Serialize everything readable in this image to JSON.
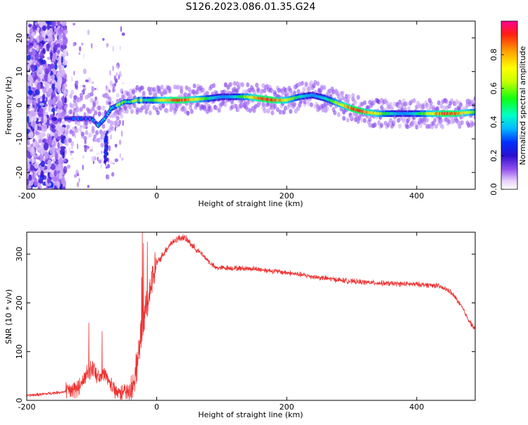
{
  "page": {
    "title": "S126.2023.086.01.35.G24"
  },
  "chart_data": [
    {
      "type": "heatmap",
      "title": "S126.2023.086.01.35.G24",
      "xlabel": "Height of straight line (km)",
      "ylabel": "Frequency (Hz)",
      "xlim": [
        -200,
        490
      ],
      "ylim": [
        -25,
        25
      ],
      "x_ticks": [
        -200,
        0,
        200,
        400
      ],
      "y_ticks": [
        -20,
        -10,
        0,
        10,
        20
      ],
      "colorbar": {
        "label": "Normalized spectral amplitude",
        "range": [
          0,
          1
        ],
        "ticks": [
          0.0,
          0.2,
          0.4,
          0.6,
          0.8
        ],
        "colors": [
          "#ffffff",
          "#d8b8f8",
          "#8040e8",
          "#3010c0",
          "#0000ff",
          "#00c0ff",
          "#00ffc0",
          "#00ff00",
          "#c0ff00",
          "#ffff00",
          "#ffa000",
          "#ff2000",
          "#ff0080"
        ]
      },
      "ridge": {
        "x": [
          -100,
          -90,
          -80,
          -70,
          -60,
          -50,
          -40,
          -30,
          -20,
          0,
          40,
          80,
          100,
          140,
          180,
          200,
          220,
          240,
          260,
          280,
          300,
          320,
          340,
          380,
          420,
          460,
          490
        ],
        "y": [
          -4,
          -6,
          -4,
          -1,
          0,
          1,
          1,
          1.5,
          1.5,
          1.5,
          1.5,
          2,
          2.5,
          2.5,
          1.5,
          1.5,
          2.5,
          3,
          2,
          0.5,
          -1,
          -2,
          -2.5,
          -2.5,
          -2.5,
          -2.5,
          -2
        ]
      },
      "grid": false
    },
    {
      "type": "line",
      "xlabel": "Height of straight line (km)",
      "ylabel": "SNR (10 * v/v)",
      "xlim": [
        -200,
        490
      ],
      "ylim": [
        0,
        345
      ],
      "x_ticks": [
        -200,
        0,
        200,
        400
      ],
      "y_ticks": [
        0,
        100,
        200,
        300
      ],
      "series": [
        {
          "color": "#ee3333",
          "x": [
            -200,
            -180,
            -160,
            -140,
            -120,
            -110,
            -100,
            -90,
            -80,
            -70,
            -60,
            -50,
            -40,
            -35,
            -30,
            -25,
            -20,
            -15,
            -10,
            -5,
            0,
            10,
            20,
            30,
            40,
            50,
            60,
            70,
            80,
            90,
            100,
            150,
            200,
            250,
            300,
            350,
            400,
            430,
            450,
            460,
            470,
            480,
            490
          ],
          "y": [
            10,
            12,
            15,
            18,
            25,
            45,
            70,
            50,
            55,
            30,
            20,
            15,
            20,
            40,
            80,
            120,
            160,
            200,
            230,
            260,
            280,
            300,
            320,
            330,
            335,
            325,
            310,
            300,
            285,
            272,
            272,
            270,
            262,
            252,
            244,
            240,
            238,
            236,
            225,
            210,
            190,
            165,
            145
          ]
        }
      ],
      "grid": false
    }
  ]
}
